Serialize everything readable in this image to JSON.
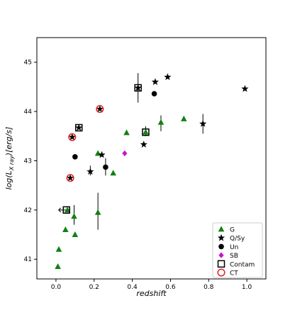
{
  "chart_data": {
    "type": "scatter",
    "title": "",
    "xlabel": "redshift",
    "ylabel": "log(L_{X ray})[erg/s]",
    "xlim": [
      -0.1,
      1.1
    ],
    "ylim": [
      40.6,
      45.5
    ],
    "x_ticks": [
      {
        "value": 0.0,
        "label": "0.0"
      },
      {
        "value": 0.2,
        "label": "0.2"
      },
      {
        "value": 0.4,
        "label": "0.4"
      },
      {
        "value": 0.6,
        "label": "0.6"
      },
      {
        "value": 0.8,
        "label": "0.8"
      },
      {
        "value": 1.0,
        "label": "1.0"
      }
    ],
    "y_ticks": [
      {
        "value": 41,
        "label": "41"
      },
      {
        "value": 42,
        "label": "42"
      },
      {
        "value": 43,
        "label": "43"
      },
      {
        "value": 44,
        "label": "44"
      },
      {
        "value": 45,
        "label": "45"
      }
    ],
    "grid": false,
    "legend_position": "bottom-right",
    "colors": {
      "G": "#138013",
      "QSy": "#000000",
      "Un": "#000000",
      "SB": "#cc11cc",
      "CT": "#e02020"
    },
    "series": [
      {
        "name": "G",
        "marker": "triangle",
        "points": [
          {
            "x": 0.01,
            "y": 40.85
          },
          {
            "x": 0.015,
            "y": 41.2
          },
          {
            "x": 0.05,
            "y": 41.6
          },
          {
            "x": 0.1,
            "y": 41.5
          },
          {
            "x": 0.095,
            "y": 41.87
          },
          {
            "x": 0.06,
            "y": 42.0
          },
          {
            "x": 0.22,
            "y": 41.95
          },
          {
            "x": 0.22,
            "y": 43.15
          },
          {
            "x": 0.3,
            "y": 42.75
          },
          {
            "x": 0.37,
            "y": 43.57
          },
          {
            "x": 0.47,
            "y": 43.58
          },
          {
            "x": 0.55,
            "y": 43.78
          },
          {
            "x": 0.67,
            "y": 43.85
          }
        ]
      },
      {
        "name": "Q/Sy",
        "marker": "star",
        "points": [
          {
            "x": 0.075,
            "y": 42.65
          },
          {
            "x": 0.085,
            "y": 43.48
          },
          {
            "x": 0.12,
            "y": 43.67
          },
          {
            "x": 0.18,
            "y": 42.78
          },
          {
            "x": 0.23,
            "y": 44.05
          },
          {
            "x": 0.24,
            "y": 43.12
          },
          {
            "x": 0.43,
            "y": 44.48
          },
          {
            "x": 0.46,
            "y": 43.33
          },
          {
            "x": 0.52,
            "y": 44.6
          },
          {
            "x": 0.585,
            "y": 44.7
          },
          {
            "x": 0.77,
            "y": 43.75
          },
          {
            "x": 0.99,
            "y": 44.46
          }
        ]
      },
      {
        "name": "Un",
        "marker": "circle",
        "points": [
          {
            "x": 0.1,
            "y": 43.08
          },
          {
            "x": 0.26,
            "y": 42.87
          },
          {
            "x": 0.515,
            "y": 44.36
          }
        ]
      },
      {
        "name": "SB",
        "marker": "diamond",
        "points": [
          {
            "x": 0.36,
            "y": 43.15
          }
        ]
      },
      {
        "name": "Contam",
        "marker": "square-open",
        "points": [
          {
            "x": 0.055,
            "y": 42.0
          },
          {
            "x": 0.12,
            "y": 43.67
          },
          {
            "x": 0.43,
            "y": 44.48
          },
          {
            "x": 0.47,
            "y": 43.58
          }
        ]
      },
      {
        "name": "CT",
        "marker": "circle-open",
        "points": [
          {
            "x": 0.075,
            "y": 42.65
          },
          {
            "x": 0.085,
            "y": 43.48
          },
          {
            "x": 0.23,
            "y": 44.05
          }
        ]
      }
    ],
    "error_bars": [
      {
        "x": 0.22,
        "y_low": 41.6,
        "y_high": 42.35
      },
      {
        "x": 0.095,
        "y_low": 41.7,
        "y_high": 42.1
      },
      {
        "x": 0.43,
        "y_low": 44.18,
        "y_high": 44.78
      },
      {
        "x": 0.77,
        "y_low": 43.55,
        "y_high": 43.95
      },
      {
        "x": 0.55,
        "y_low": 43.6,
        "y_high": 43.92
      },
      {
        "x": 0.26,
        "y_low": 42.7,
        "y_high": 43.05
      },
      {
        "x": 0.18,
        "y_low": 42.7,
        "y_high": 42.9
      },
      {
        "x": 0.47,
        "y_low": 43.5,
        "y_high": 43.7
      }
    ],
    "upper_limits": [
      {
        "x": 0.055,
        "y": 42.0,
        "direction": "left"
      }
    ]
  }
}
